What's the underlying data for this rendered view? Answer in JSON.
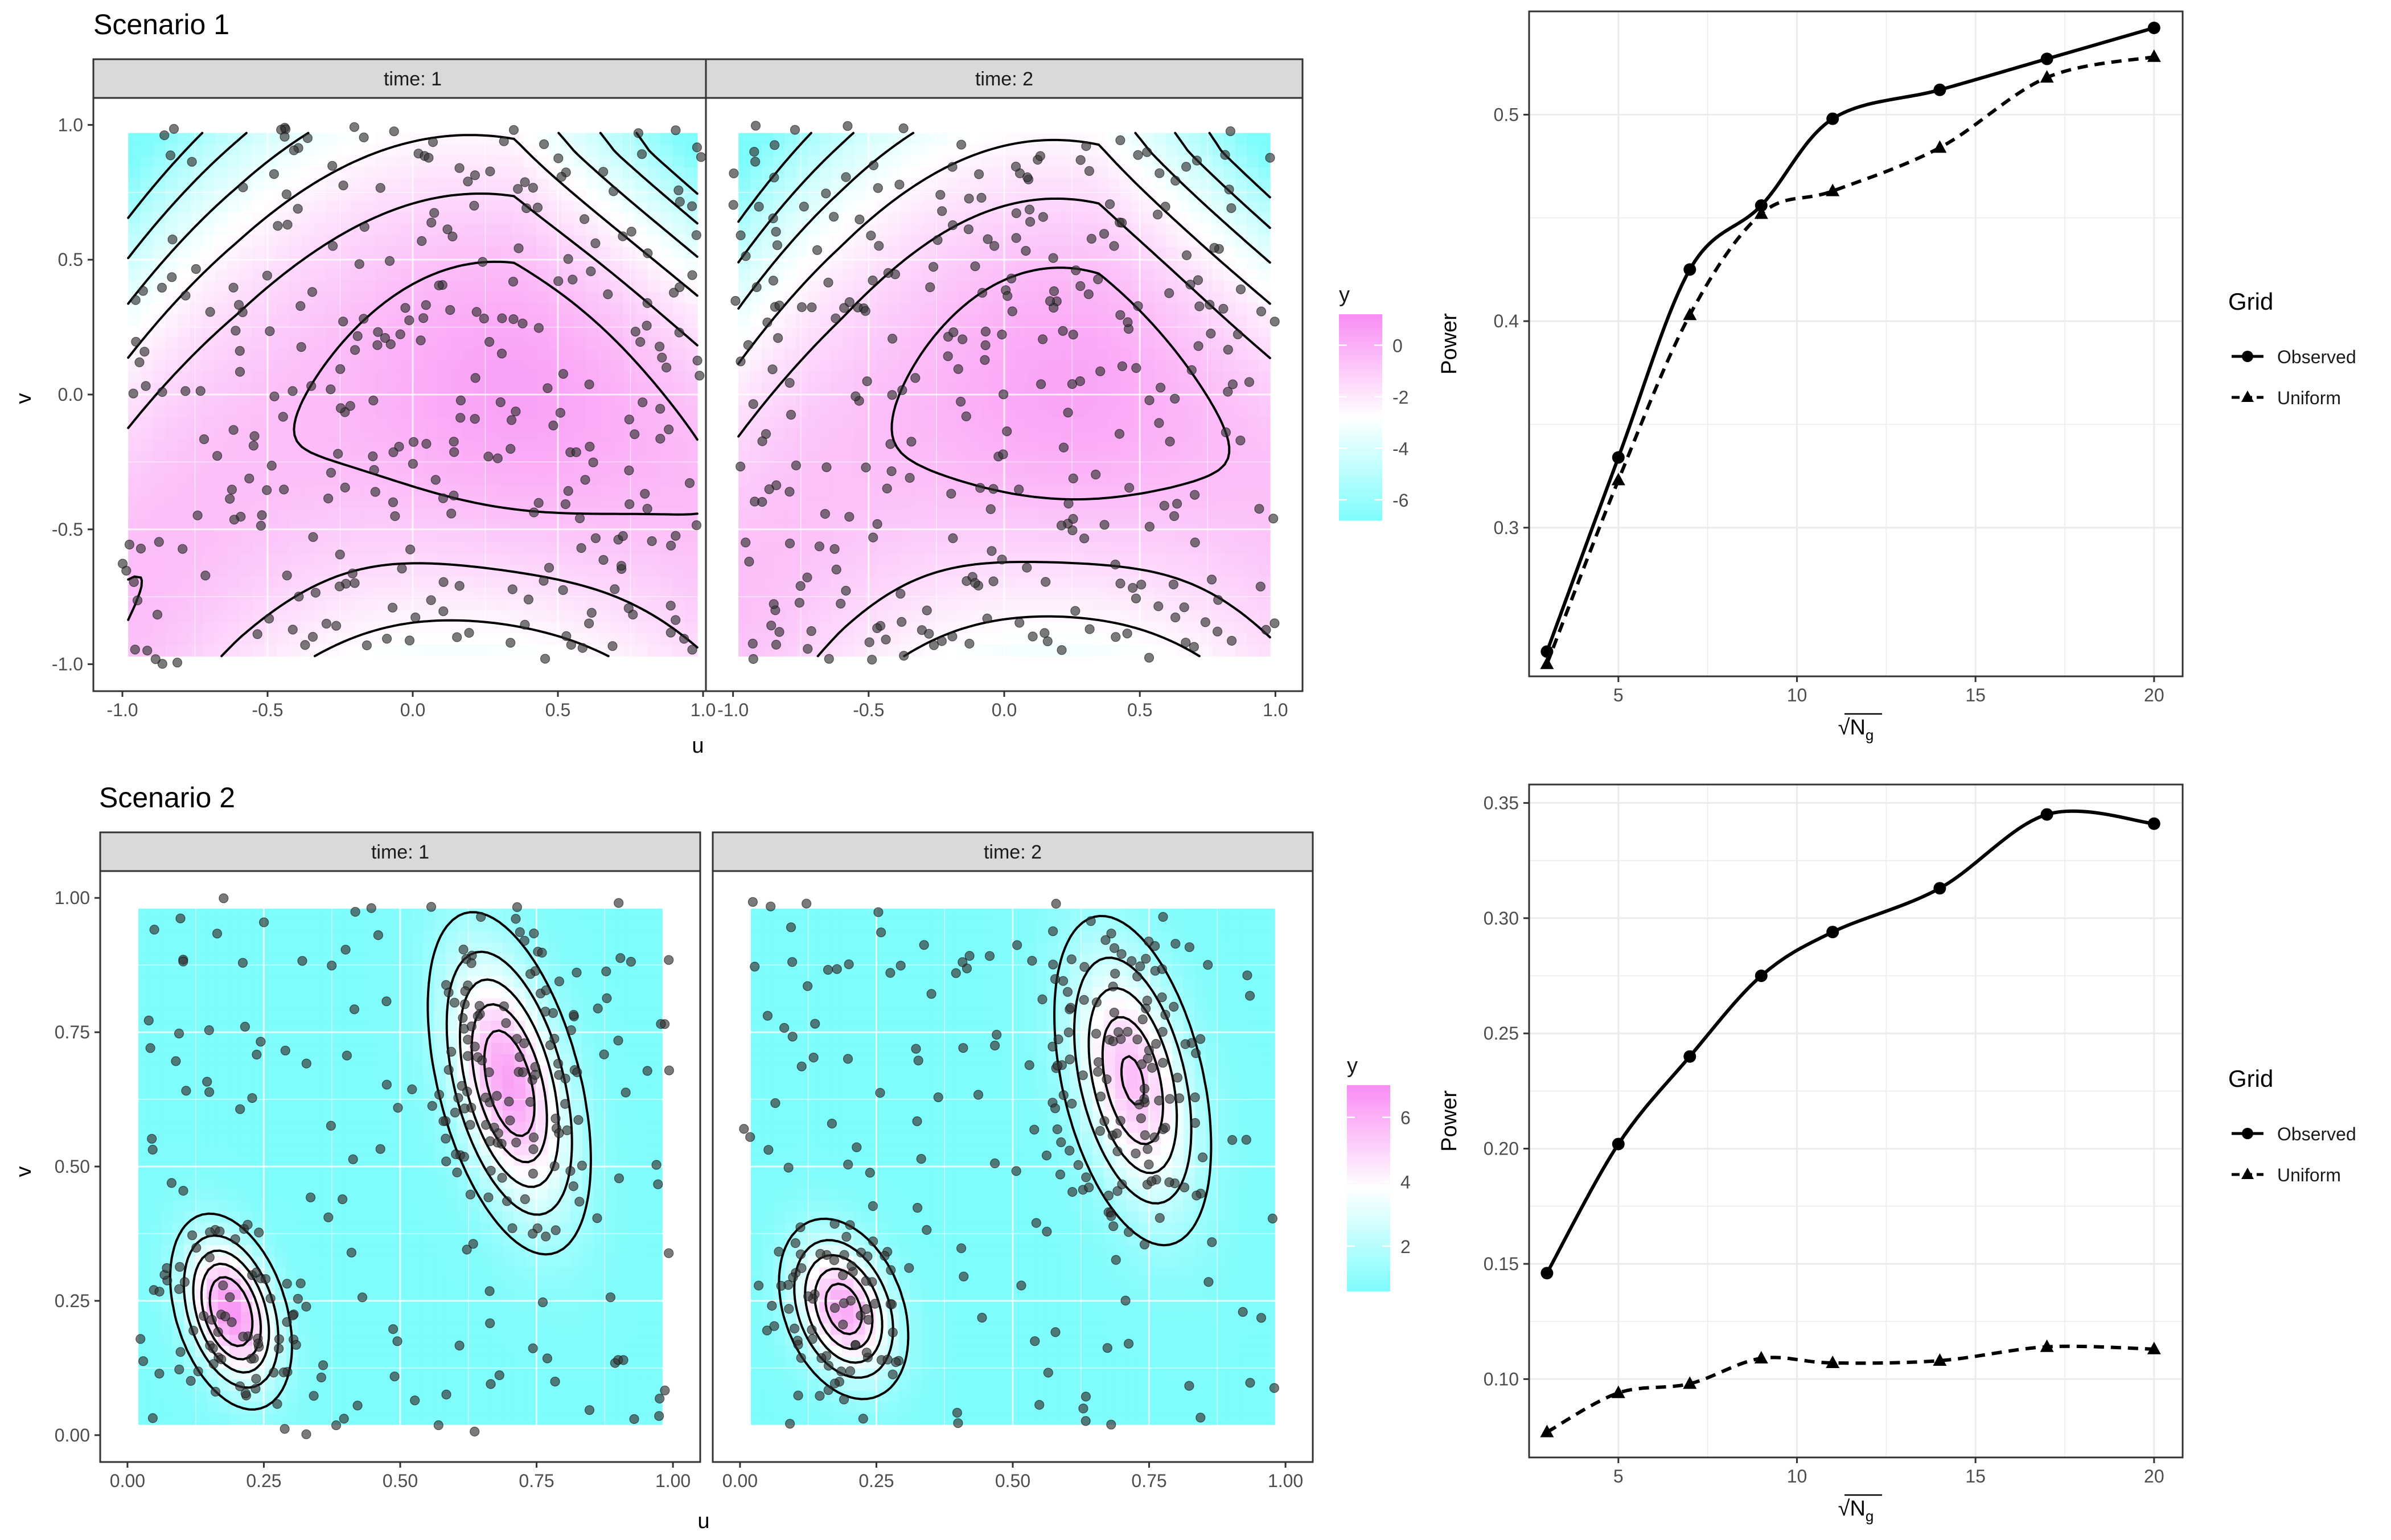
{
  "colors": {
    "low": "#7ffcfc",
    "mid": "#ffffff",
    "high": "#f98cf4",
    "points": "#333333",
    "strip_fill": "#d9d9d9",
    "grid": "#ebebeb",
    "axis_text": "#4d4d4d"
  },
  "scenario1": {
    "title": "Scenario 1",
    "xlabel": "u",
    "ylabel": "v",
    "facets": [
      {
        "strip": "time: 1",
        "seed": 11
      },
      {
        "strip": "time: 2",
        "seed": 23
      }
    ],
    "xticks": [
      "-1.0",
      "-0.5",
      "0.0",
      "0.5",
      "1.0"
    ],
    "yticks": [
      "1.0",
      "0.5",
      "0.0",
      "-0.5",
      "-1.0"
    ],
    "legend": {
      "title": "y",
      "labels": [
        "0",
        "-2",
        "-4",
        "-6"
      ],
      "min": -6.8,
      "max": 1.2,
      "label_values": [
        0,
        -2,
        -4,
        -6
      ]
    }
  },
  "scenario2": {
    "title": "Scenario 2",
    "xlabel": "u",
    "ylabel": "v",
    "facets": [
      {
        "strip": "time: 1",
        "seed": 37
      },
      {
        "strip": "time: 2",
        "seed": 53
      }
    ],
    "xticks": [
      "0.00",
      "0.25",
      "0.50",
      "0.75",
      "1.00"
    ],
    "yticks": [
      "1.00",
      "0.75",
      "0.50",
      "0.25",
      "0.00"
    ],
    "legend": {
      "title": "y",
      "labels": [
        "6",
        "4",
        "2"
      ],
      "min": 0.6,
      "max": 7.0,
      "label_values": [
        6,
        4,
        2
      ]
    }
  },
  "chart_data": [
    {
      "type": "line",
      "x": [
        3,
        5,
        7,
        9,
        11,
        14,
        17,
        20
      ],
      "xlabel": "√N",
      "xlabel_sub": "g",
      "ylabel": "Power",
      "xlim": [
        2.5,
        20.8
      ],
      "ylim": [
        0.228,
        0.55
      ],
      "xticks": [
        "5",
        "10",
        "15",
        "20"
      ],
      "xtick_values": [
        5,
        10,
        15,
        20
      ],
      "yticks": [
        "0.5",
        "0.4",
        "0.3"
      ],
      "ytick_values": [
        0.5,
        0.4,
        0.3
      ],
      "legend_title": "Grid",
      "series": [
        {
          "name": "Observed",
          "values": [
            0.24,
            0.334,
            0.425,
            0.456,
            0.498,
            0.512,
            0.527,
            0.542
          ],
          "marker": "circle",
          "dash": "solid"
        },
        {
          "name": "Uniform",
          "values": [
            0.234,
            0.323,
            0.403,
            0.452,
            0.463,
            0.484,
            0.518,
            0.528
          ],
          "marker": "triangle",
          "dash": "dashed"
        }
      ]
    },
    {
      "type": "line",
      "x": [
        3,
        5,
        7,
        9,
        11,
        14,
        17,
        20
      ],
      "xlabel": "√N",
      "xlabel_sub": "g",
      "ylabel": "Power",
      "xlim": [
        2.5,
        20.8
      ],
      "ylim": [
        0.066,
        0.358
      ],
      "xticks": [
        "5",
        "10",
        "15",
        "20"
      ],
      "xtick_values": [
        5,
        10,
        15,
        20
      ],
      "yticks": [
        "0.35",
        "0.30",
        "0.25",
        "0.20",
        "0.15",
        "0.10"
      ],
      "ytick_values": [
        0.35,
        0.3,
        0.25,
        0.2,
        0.15,
        0.1
      ],
      "legend_title": "Grid",
      "series": [
        {
          "name": "Observed",
          "values": [
            0.146,
            0.202,
            0.24,
            0.275,
            0.294,
            0.313,
            0.345,
            0.341
          ],
          "marker": "circle",
          "dash": "solid"
        },
        {
          "name": "Uniform",
          "values": [
            0.077,
            0.094,
            0.098,
            0.109,
            0.107,
            0.108,
            0.114,
            0.113
          ],
          "marker": "triangle",
          "dash": "dashed"
        }
      ]
    }
  ]
}
